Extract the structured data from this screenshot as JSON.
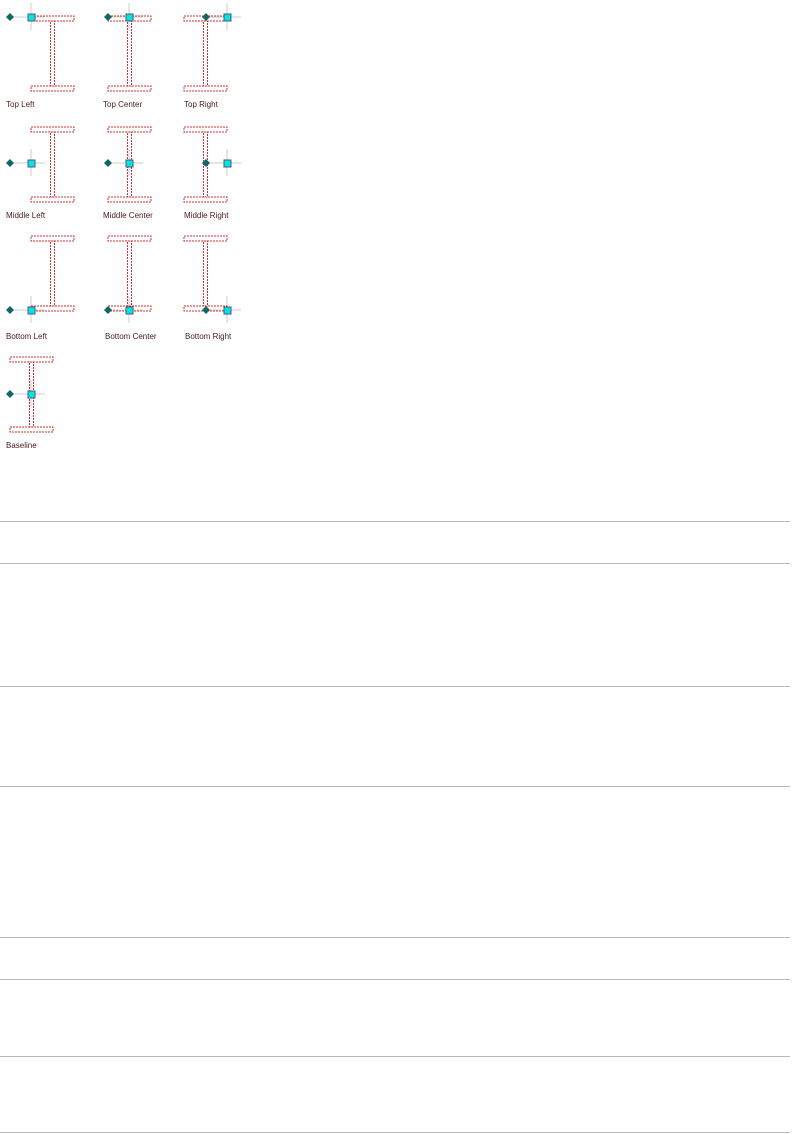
{
  "diagrams": [
    {
      "label": "Top Left"
    },
    {
      "label": "Top Center"
    },
    {
      "label": "Top Right"
    },
    {
      "label": "Middle Left"
    },
    {
      "label": "Middle Center"
    },
    {
      "label": "Middle Right"
    },
    {
      "label": "Bottom Left"
    },
    {
      "label": "Bottom Center"
    },
    {
      "label": "Bottom Right"
    },
    {
      "label": "Baseline"
    }
  ],
  "colors": {
    "outline": "#cc3333",
    "outline_dark": "#8b0000",
    "diamond": "#116666",
    "square": "#00e5e5",
    "guide": "#cccccc"
  }
}
